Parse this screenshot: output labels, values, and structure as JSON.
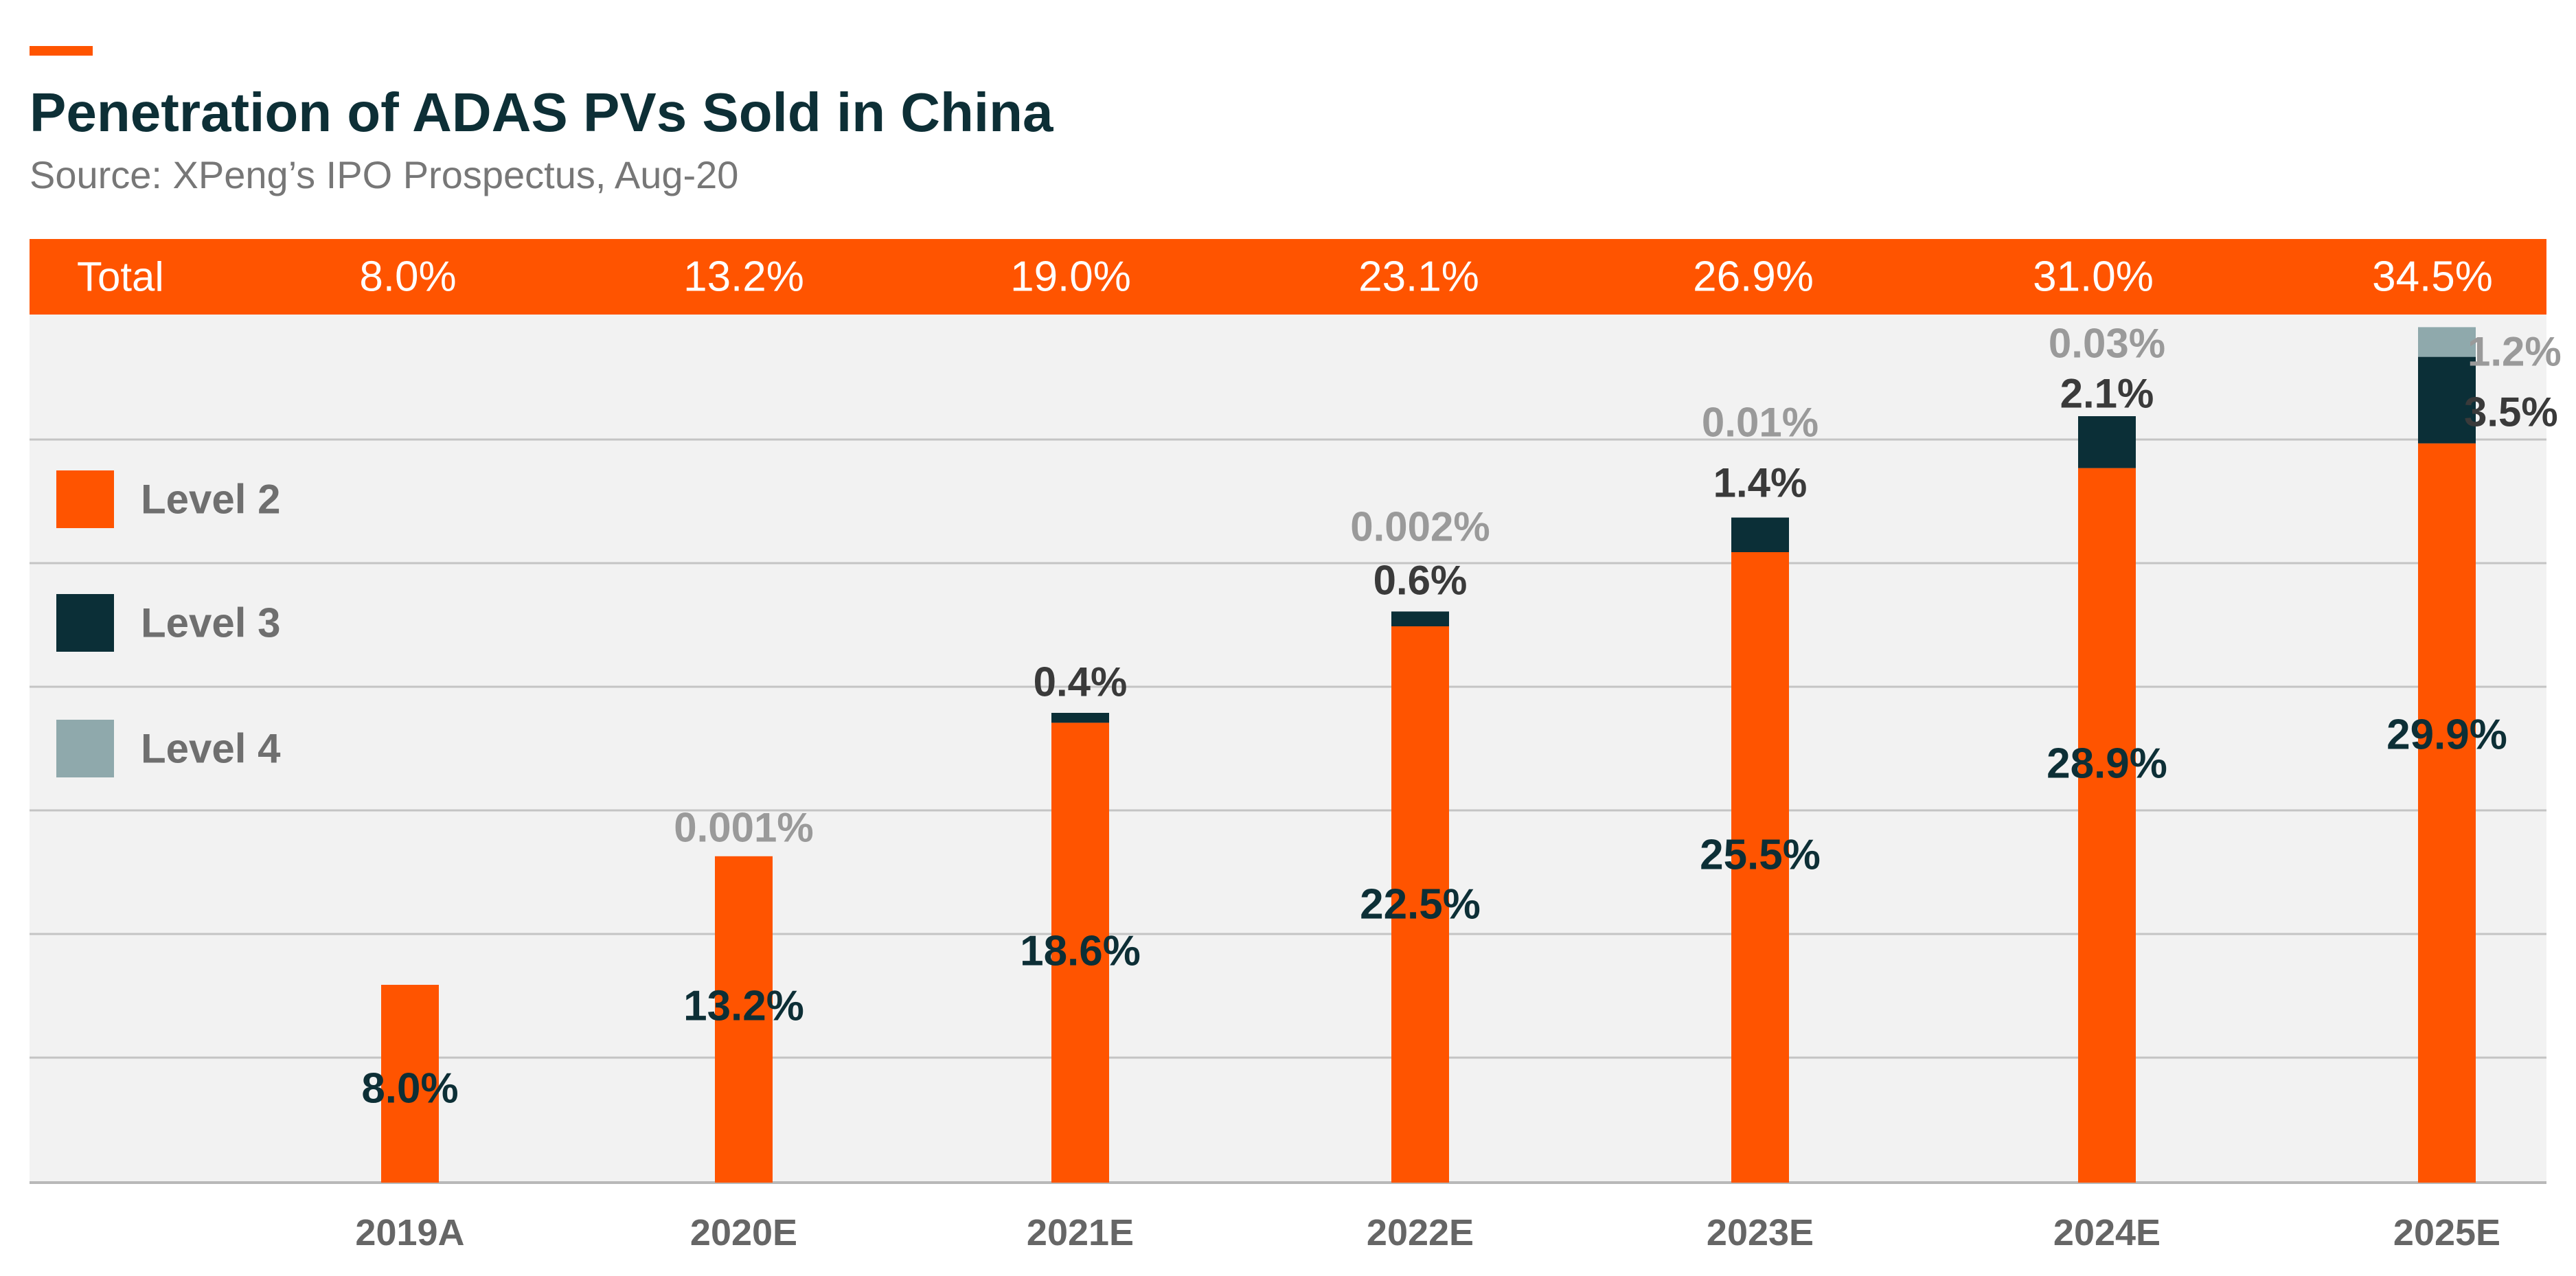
{
  "colors": {
    "accent": "#ff5400",
    "level2": "#ff5400",
    "level3": "#0b2f37",
    "level4": "#8fa9ac",
    "plot_bg": "#f2f2f2",
    "grid": "#c4c4c4",
    "title": "#0d2f36",
    "muted": "#777777",
    "light_label": "#9a9a9a",
    "dark_label": "#0d2f36",
    "white": "#ffffff"
  },
  "chart_data": {
    "type": "bar",
    "stacked": true,
    "title": "Penetration of ADAS PVs Sold in China",
    "subtitle": "Source: XPeng’s IPO Prospectus, Aug-20",
    "categories": [
      "2019A",
      "2020E",
      "2021E",
      "2022E",
      "2023E",
      "2024E",
      "2025E"
    ],
    "series": [
      {
        "name": "Level 2",
        "values": [
          8.0,
          13.2,
          18.6,
          22.5,
          25.5,
          28.9,
          29.9
        ],
        "labels": [
          "8.0%",
          "13.2%",
          "18.6%",
          "22.5%",
          "25.5%",
          "28.9%",
          "29.9%"
        ]
      },
      {
        "name": "Level 3",
        "values": [
          0,
          0,
          0.4,
          0.6,
          1.4,
          2.1,
          3.5
        ],
        "labels": [
          "",
          "",
          "0.4%",
          "0.6%",
          "1.4%",
          "2.1%",
          "3.5%"
        ]
      },
      {
        "name": "Level 4",
        "values": [
          0,
          0.001,
          0,
          0.002,
          0.01,
          0.03,
          1.2
        ],
        "labels": [
          "",
          "0.001%",
          "",
          "0.002%",
          "0.01%",
          "0.03%",
          "1.2%"
        ]
      }
    ],
    "total_row": {
      "label": "Total",
      "values": [
        "8.0%",
        "13.2%",
        "19.0%",
        "23.1%",
        "26.9%",
        "31.0%",
        "34.5%"
      ]
    },
    "ylim": [
      0,
      35
    ],
    "grid": true,
    "legend_placement": "left"
  }
}
